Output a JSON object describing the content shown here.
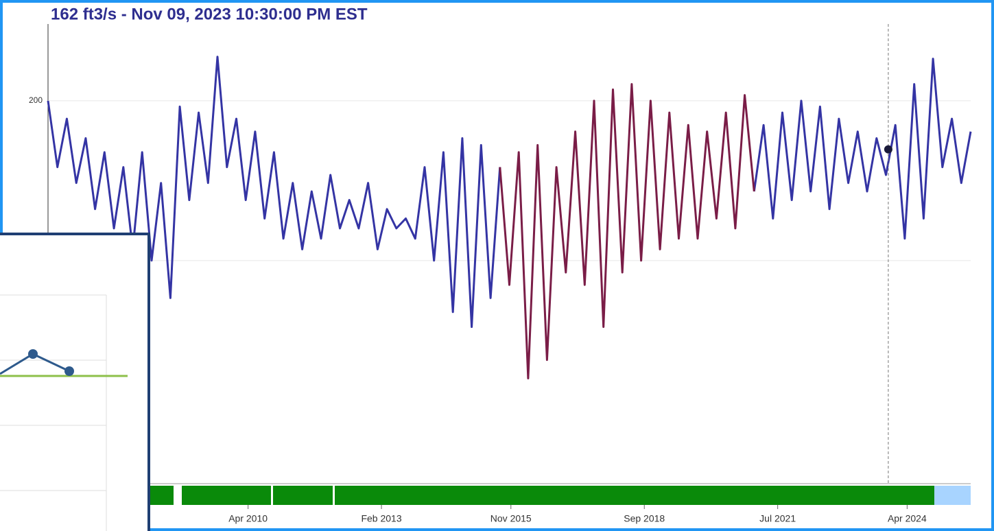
{
  "chart_data": {
    "type": "line",
    "title": "162 ft3/s - Nov 09, 2023 10:30:00 PM EST",
    "log_y": true,
    "xlim": [
      2006.0,
      2025.6
    ],
    "ylim": [
      38,
      279
    ],
    "yticks": [
      200
    ],
    "ygrid": [
      100,
      200
    ],
    "xticks": [
      {
        "value": 2010.25,
        "label": "Apr 2010"
      },
      {
        "value": 2013.083,
        "label": "Feb 2013"
      },
      {
        "value": 2015.833,
        "label": "Nov 2015"
      },
      {
        "value": 2018.667,
        "label": "Sep 2018"
      },
      {
        "value": 2021.5,
        "label": "Jul 2021"
      },
      {
        "value": 2024.25,
        "label": "Apr 2024"
      }
    ],
    "highlight": {
      "x": 2023.85,
      "value": 162,
      "color": "#1a1a3a"
    },
    "x": [
      2006.0,
      2006.2,
      2006.4,
      2006.6,
      2006.8,
      2007.0,
      2007.2,
      2007.4,
      2007.6,
      2007.8,
      2008.0,
      2008.2,
      2008.4,
      2008.6,
      2008.8,
      2009.0,
      2009.2,
      2009.4,
      2009.6,
      2009.8,
      2010.0,
      2010.2,
      2010.4,
      2010.6,
      2010.8,
      2011.0,
      2011.2,
      2011.4,
      2011.6,
      2011.8,
      2012.0,
      2012.2,
      2012.4,
      2012.6,
      2012.8,
      2013.0,
      2013.2,
      2013.4,
      2013.6,
      2013.8,
      2014.0,
      2014.2,
      2014.4,
      2014.6,
      2014.8,
      2015.0,
      2015.2,
      2015.4,
      2015.6,
      2015.8,
      2016.0,
      2016.2,
      2016.4,
      2016.6,
      2016.8,
      2017.0,
      2017.2,
      2017.4,
      2017.6,
      2017.8,
      2018.0,
      2018.2,
      2018.4,
      2018.6,
      2018.8,
      2019.0,
      2019.2,
      2019.4,
      2019.6,
      2019.8,
      2020.0,
      2020.2,
      2020.4,
      2020.6,
      2020.8,
      2021.0,
      2021.2,
      2021.4,
      2021.6,
      2021.8,
      2022.0,
      2022.2,
      2022.4,
      2022.6,
      2022.8,
      2023.0,
      2023.2,
      2023.4,
      2023.6,
      2023.8,
      2024.0,
      2024.2,
      2024.4,
      2024.6,
      2024.8,
      2025.0,
      2025.2,
      2025.4,
      2025.6
    ],
    "series": [
      {
        "color": "#3434a4",
        "values": [
          200,
          150,
          185,
          140,
          170,
          125,
          160,
          115,
          150,
          105,
          160,
          100,
          140,
          85,
          195,
          130,
          190,
          140,
          242,
          150,
          185,
          130,
          175,
          120,
          160,
          110,
          140,
          105,
          135,
          110,
          145,
          115,
          130,
          115,
          140,
          105,
          125,
          115,
          120,
          110,
          150,
          100,
          160,
          80,
          170,
          75,
          165,
          85,
          150,
          null,
          null,
          null,
          null,
          null,
          null,
          null,
          null,
          null,
          null,
          null,
          null,
          null,
          null,
          null,
          null,
          null,
          null,
          null,
          null,
          null,
          null,
          null,
          null,
          null,
          null,
          135,
          180,
          120,
          190,
          130,
          200,
          135,
          195,
          125,
          185,
          140,
          175,
          135,
          170,
          145,
          180,
          110,
          215,
          120,
          240,
          150,
          185,
          140,
          175
        ]
      },
      {
        "color": "#7a1d47",
        "values": [
          null,
          null,
          null,
          null,
          null,
          null,
          null,
          null,
          null,
          null,
          null,
          null,
          null,
          null,
          null,
          null,
          null,
          null,
          null,
          null,
          null,
          null,
          null,
          null,
          null,
          null,
          null,
          null,
          null,
          null,
          null,
          null,
          null,
          null,
          null,
          null,
          null,
          null,
          null,
          null,
          null,
          null,
          null,
          null,
          null,
          null,
          null,
          null,
          150,
          90,
          160,
          60,
          165,
          65,
          150,
          95,
          175,
          90,
          200,
          75,
          210,
          95,
          215,
          100,
          200,
          105,
          190,
          110,
          180,
          110,
          175,
          120,
          190,
          115,
          205,
          135,
          null,
          null,
          null,
          null,
          null,
          null,
          null,
          null,
          null,
          null,
          null,
          null,
          null,
          null,
          null,
          null,
          null,
          null,
          null,
          null,
          null,
          null,
          null
        ]
      }
    ]
  }
}
